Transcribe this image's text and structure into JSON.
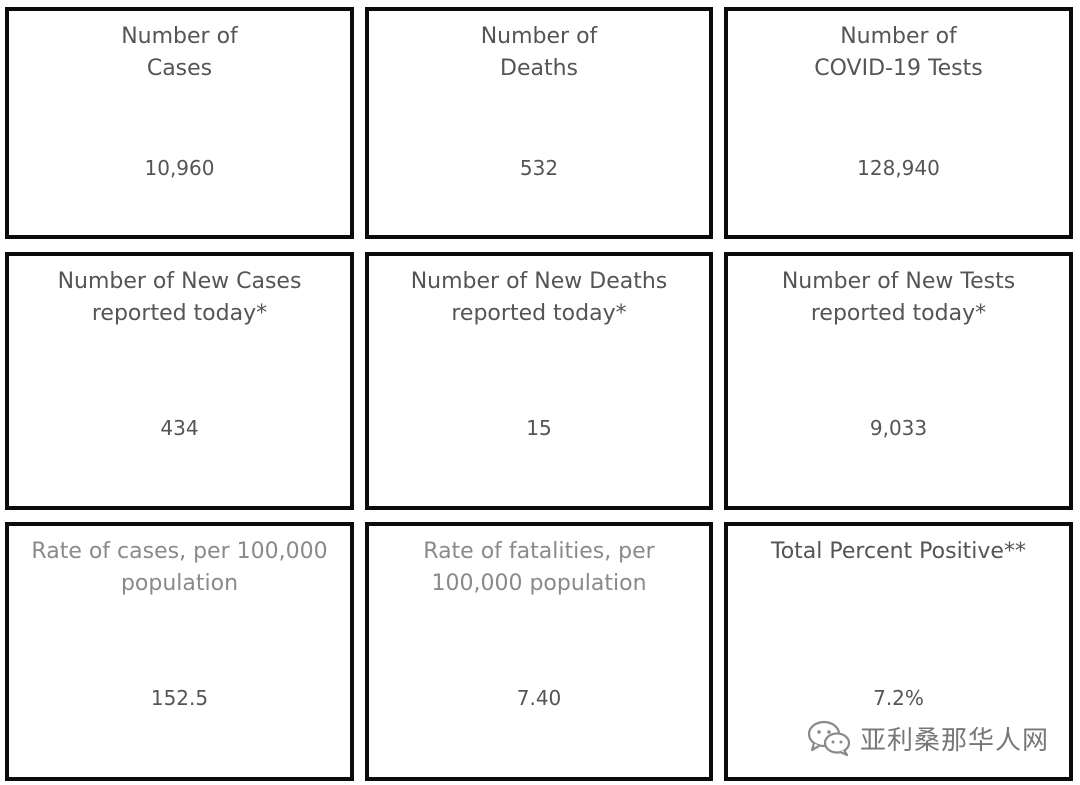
{
  "cards": [
    {
      "title_lines": [
        "Number of",
        "Cases"
      ],
      "value": "10,960"
    },
    {
      "title_lines": [
        "Number of",
        "Deaths"
      ],
      "value": "532"
    },
    {
      "title_lines": [
        "Number of",
        "COVID-19 Tests"
      ],
      "value": "128,940"
    },
    {
      "title_lines": [
        "Number of New Cases",
        "reported today*"
      ],
      "value": "434"
    },
    {
      "title_lines": [
        "Number of New Deaths",
        "reported today*"
      ],
      "value": "15"
    },
    {
      "title_lines": [
        "Number of New Tests",
        "reported today*"
      ],
      "value": "9,033"
    },
    {
      "title_lines": [
        "Rate of cases, per 100,000",
        "population"
      ],
      "value": "152.5"
    },
    {
      "title_lines": [
        "Rate of fatalities, per",
        "100,000 population"
      ],
      "value": "7.40"
    },
    {
      "title_lines": [
        "Total Percent Positive**"
      ],
      "value": "7.2%"
    }
  ],
  "watermark": {
    "text": "亚利桑那华人网",
    "icon": "wechat-icon"
  },
  "colors": {
    "border": "#0b0b0b",
    "text": "#555555",
    "text_light": "#8a8a8a",
    "watermark": "#777777"
  }
}
